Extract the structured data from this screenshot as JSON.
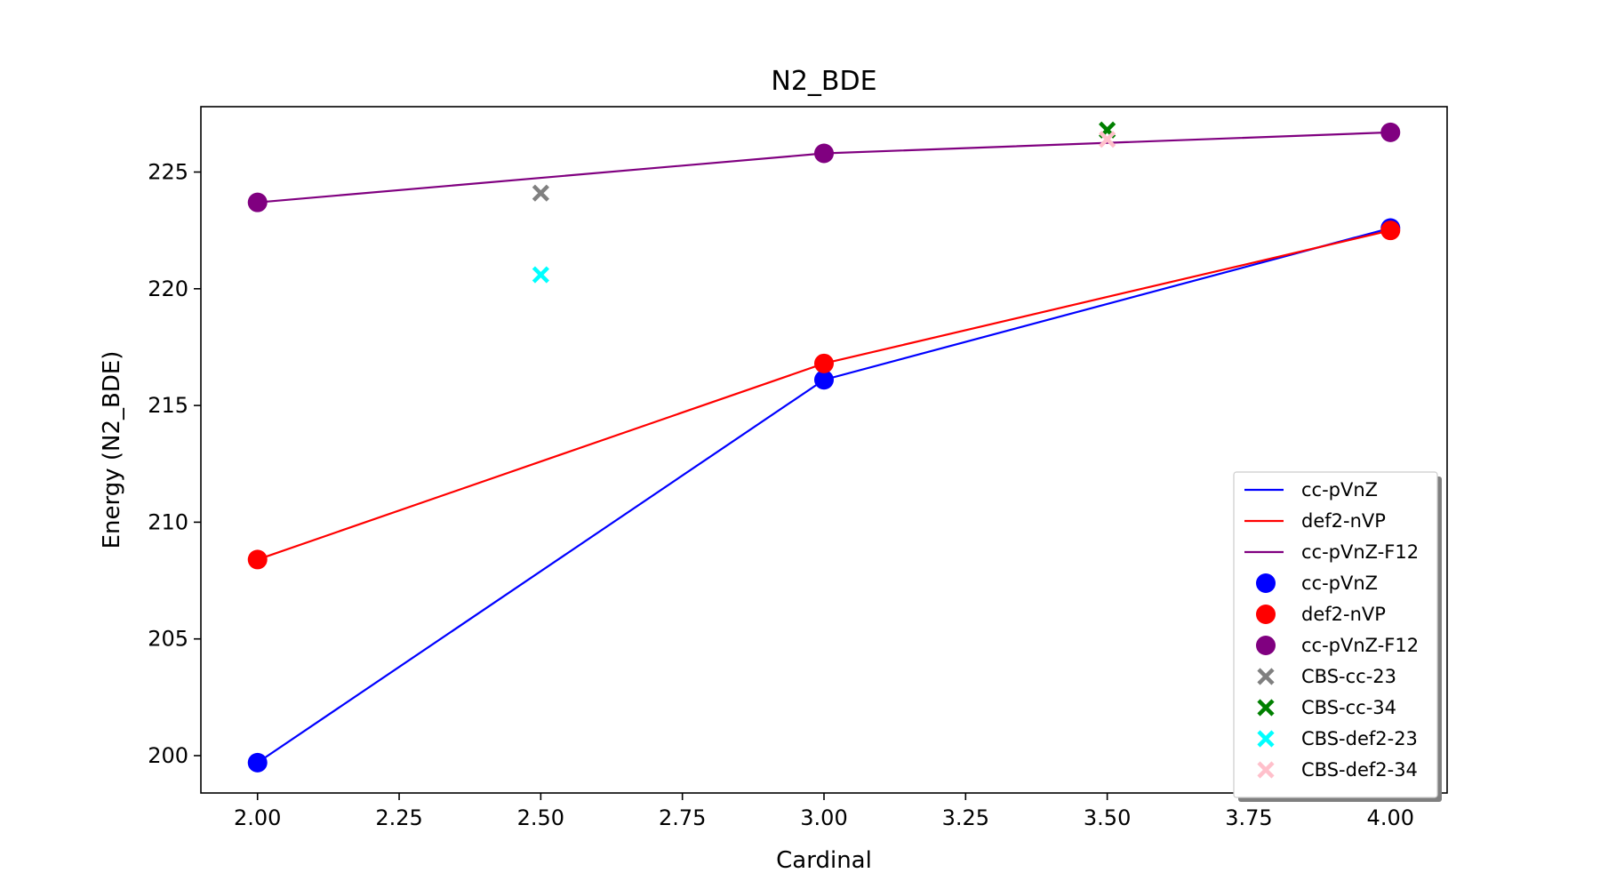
{
  "chart_data": {
    "type": "line",
    "title": "N2_BDE",
    "xlabel": "Cardinal",
    "ylabel": "Energy (N2_BDE)",
    "xlim": [
      1.9,
      4.1
    ],
    "ylim": [
      198.4,
      227.8
    ],
    "xticks": [
      2.0,
      2.25,
      2.5,
      2.75,
      3.0,
      3.25,
      3.5,
      3.75,
      4.0
    ],
    "xtick_labels": [
      "2.00",
      "2.25",
      "2.50",
      "2.75",
      "3.00",
      "3.25",
      "3.50",
      "3.75",
      "4.00"
    ],
    "yticks": [
      200,
      205,
      210,
      215,
      220,
      225
    ],
    "ytick_labels": [
      "200",
      "205",
      "210",
      "215",
      "220",
      "225"
    ],
    "grid": false,
    "legend_position": "lower-right",
    "line_series": [
      {
        "name": "cc-pVnZ",
        "color": "#0000ff",
        "x": [
          2,
          3,
          4
        ],
        "y": [
          199.7,
          216.1,
          222.6
        ]
      },
      {
        "name": "def2-nVP",
        "color": "#ff0000",
        "x": [
          2,
          3,
          4
        ],
        "y": [
          208.4,
          216.8,
          222.5
        ]
      },
      {
        "name": "cc-pVnZ-F12",
        "color": "#800080",
        "x": [
          2,
          3,
          4
        ],
        "y": [
          223.7,
          225.8,
          226.7
        ]
      }
    ],
    "scatter_series": [
      {
        "name": "cc-pVnZ",
        "color": "#0000ff",
        "marker": "circle",
        "x": [
          2,
          3,
          4
        ],
        "y": [
          199.7,
          216.1,
          222.6
        ]
      },
      {
        "name": "def2-nVP",
        "color": "#ff0000",
        "marker": "circle",
        "x": [
          2,
          3,
          4
        ],
        "y": [
          208.4,
          216.8,
          222.5
        ]
      },
      {
        "name": "cc-pVnZ-F12",
        "color": "#800080",
        "marker": "circle",
        "x": [
          2,
          3,
          4
        ],
        "y": [
          223.7,
          225.8,
          226.7
        ]
      },
      {
        "name": "CBS-cc-23",
        "color": "#808080",
        "marker": "x",
        "x": [
          2.5
        ],
        "y": [
          224.1
        ]
      },
      {
        "name": "CBS-cc-34",
        "color": "#008000",
        "marker": "x",
        "x": [
          3.5
        ],
        "y": [
          226.8
        ]
      },
      {
        "name": "CBS-def2-23",
        "color": "#00ffff",
        "marker": "x",
        "x": [
          2.5
        ],
        "y": [
          220.6
        ]
      },
      {
        "name": "CBS-def2-34",
        "color": "#ffc0cb",
        "marker": "x",
        "x": [
          3.5
        ],
        "y": [
          226.4
        ]
      }
    ]
  }
}
